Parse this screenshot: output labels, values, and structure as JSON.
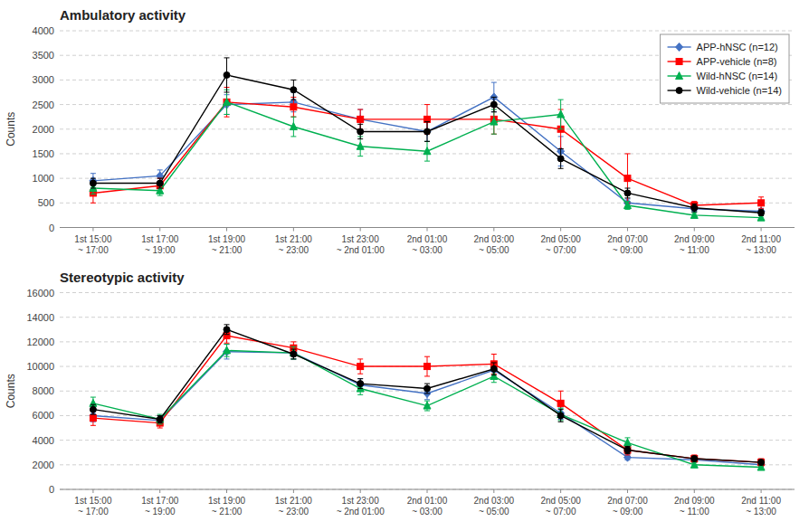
{
  "chart_data": [
    {
      "type": "line",
      "title": "Ambulatory activity",
      "y_label": "Counts",
      "categories": [
        "1st 15:00\n~ 17:00",
        "1st 17:00\n~ 19:00",
        "1st 19:00\n~ 21:00",
        "1st 21:00\n~ 23:00",
        "1st 23:00\n~ 2nd 01:00",
        "2nd 01:00\n~ 03:00",
        "2nd 03:00\n~ 05:00",
        "2nd 05:00\n~ 07:00",
        "2nd 07:00\n~ 09:00",
        "2nd 09:00\n~ 11:00",
        "2nd 11:00\n~ 13:00"
      ],
      "ylim": [
        0,
        4000
      ],
      "yticks": [
        0,
        500,
        1000,
        1500,
        2000,
        2500,
        3000,
        3500,
        4000
      ],
      "grid": true,
      "legend": "upper right",
      "series": [
        {
          "name": "APP-hNSC (n=12)",
          "color": "#4472C4",
          "marker": "diamond",
          "values": [
            950,
            1050,
            2500,
            2550,
            2200,
            1950,
            2650,
            1550,
            500,
            380,
            330
          ],
          "yerr": [
            150,
            120,
            200,
            200,
            200,
            200,
            300,
            300,
            80,
            50,
            60
          ]
        },
        {
          "name": "APP-vehicle (n=8)",
          "color": "#FF0000",
          "marker": "square",
          "values": [
            700,
            850,
            2550,
            2450,
            2200,
            2200,
            2200,
            2000,
            1000,
            450,
            500
          ],
          "yerr": [
            200,
            150,
            300,
            200,
            200,
            300,
            300,
            400,
            500,
            80,
            120
          ]
        },
        {
          "name": "Wild-hNSC (n=14)",
          "color": "#00B050",
          "marker": "triangle",
          "values": [
            800,
            750,
            2550,
            2050,
            1650,
            1550,
            2150,
            2300,
            450,
            250,
            200
          ],
          "yerr": [
            120,
            100,
            250,
            200,
            200,
            200,
            250,
            300,
            80,
            50,
            50
          ]
        },
        {
          "name": "Wild-vehicle (n=14)",
          "color": "#000000",
          "marker": "circle",
          "values": [
            900,
            900,
            3100,
            2800,
            1950,
            1950,
            2500,
            1400,
            700,
            400,
            300
          ],
          "yerr": [
            100,
            100,
            350,
            200,
            150,
            200,
            150,
            200,
            100,
            80,
            60
          ]
        }
      ]
    },
    {
      "type": "line",
      "title": "Stereotypic activity",
      "y_label": "Counts",
      "categories": [
        "1st 15:00\n~ 17:00",
        "1st 17:00\n~ 19:00",
        "1st 19:00\n~ 21:00",
        "1st 21:00\n~ 23:00",
        "1st 23:00\n~ 2nd 01:00",
        "2nd 01:00\n~ 03:00",
        "2nd 03:00\n~ 05:00",
        "2nd 05:00\n~ 07:00",
        "2nd 07:00\n~ 09:00",
        "2nd 09:00\n~ 11:00",
        "2nd 11:00\n~ 13:00"
      ],
      "ylim": [
        0,
        16000
      ],
      "yticks": [
        0,
        2000,
        4000,
        6000,
        8000,
        10000,
        12000,
        14000,
        16000
      ],
      "grid": true,
      "series": [
        {
          "name": "APP-hNSC (n=12)",
          "color": "#4472C4",
          "marker": "diamond",
          "values": [
            6000,
            5600,
            11200,
            11100,
            8500,
            7800,
            9700,
            6200,
            2600,
            2400,
            2000
          ],
          "yerr": [
            500,
            400,
            600,
            500,
            500,
            500,
            600,
            500,
            200,
            200,
            200
          ]
        },
        {
          "name": "APP-vehicle (n=8)",
          "color": "#FF0000",
          "marker": "square",
          "values": [
            5800,
            5400,
            12500,
            11500,
            10000,
            10000,
            10200,
            7000,
            3200,
            2500,
            2200
          ],
          "yerr": [
            600,
            400,
            600,
            500,
            600,
            800,
            800,
            1000,
            400,
            300,
            300
          ]
        },
        {
          "name": "Wild-hNSC (n=14)",
          "color": "#00B050",
          "marker": "triangle",
          "values": [
            7000,
            5700,
            11300,
            11100,
            8200,
            6800,
            9200,
            6100,
            3800,
            2000,
            1800
          ],
          "yerr": [
            500,
            400,
            500,
            500,
            500,
            400,
            500,
            500,
            400,
            200,
            200
          ]
        },
        {
          "name": "Wild-vehicle (n=14)",
          "color": "#000000",
          "marker": "circle",
          "values": [
            6500,
            5700,
            13000,
            11000,
            8600,
            8200,
            9800,
            6000,
            3200,
            2500,
            2200
          ],
          "yerr": [
            400,
            300,
            400,
            400,
            400,
            400,
            500,
            500,
            300,
            200,
            200
          ]
        }
      ]
    }
  ]
}
